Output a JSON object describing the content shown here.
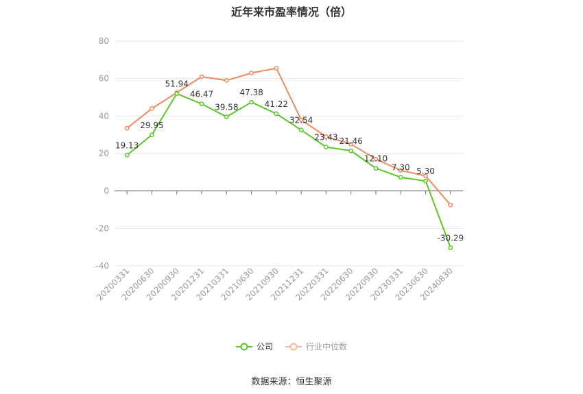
{
  "chart_data": {
    "type": "line",
    "title": "近年来市盈率情况（倍）",
    "categories": [
      "20200331",
      "20200630",
      "20200930",
      "20201231",
      "20210331",
      "20210630",
      "20210930",
      "20211231",
      "20220331",
      "20220630",
      "20220930",
      "20230331",
      "20230630",
      "20240830"
    ],
    "yticks": [
      "80",
      "60",
      "40",
      "20",
      "0",
      "-20",
      "-40"
    ],
    "ylim": [
      -40,
      80
    ],
    "series": [
      {
        "name": "公司",
        "color": "#5cc628",
        "values": [
          19.13,
          29.95,
          51.94,
          46.47,
          39.58,
          47.38,
          41.22,
          32.54,
          23.43,
          21.46,
          12.1,
          7.3,
          5.3,
          -30.29
        ],
        "labels": [
          "19.13",
          "29.95",
          "51.94",
          "46.47",
          "39.58",
          "47.38",
          "41.22",
          "32.54",
          "23.43",
          "21.46",
          "12.10",
          "7.30",
          "5.30",
          "-30.29"
        ]
      },
      {
        "name": "行业中位数",
        "color": "#f08a5d",
        "values": [
          33.5,
          44,
          52.5,
          61,
          59,
          63,
          65.5,
          38,
          29,
          25,
          17,
          11,
          8,
          -7.5
        ]
      }
    ],
    "grid": true,
    "legend": "bottom-center"
  },
  "source": "数据来源：恒生聚源"
}
